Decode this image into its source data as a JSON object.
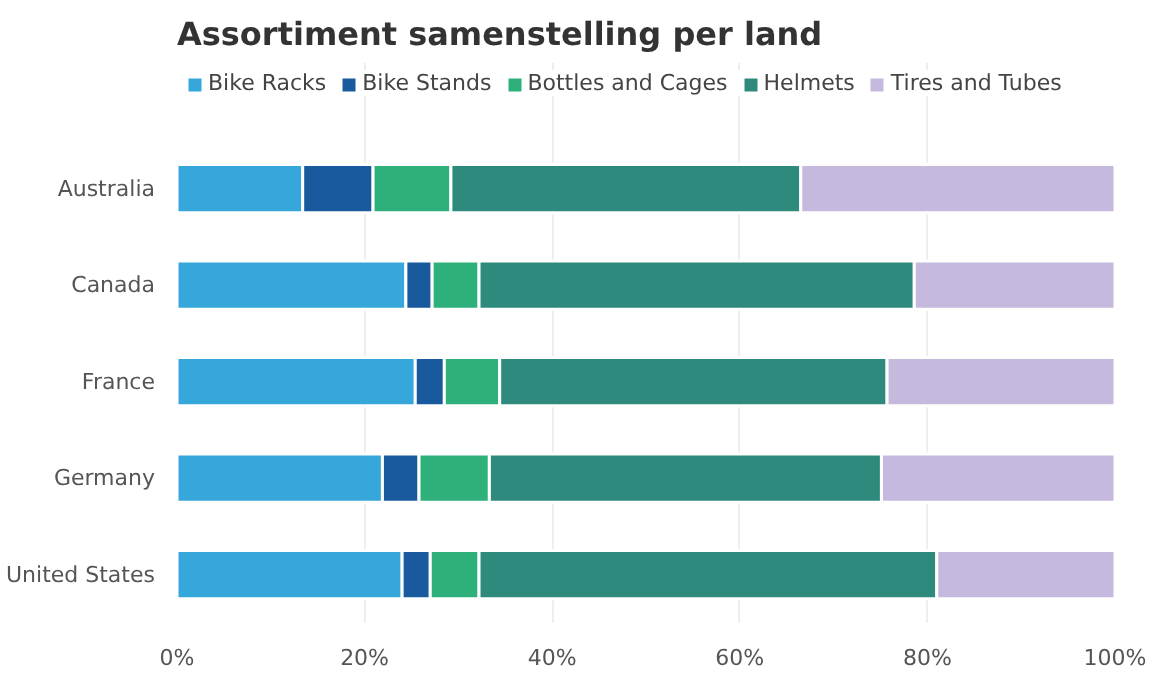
{
  "chart_data": {
    "type": "bar",
    "orientation": "horizontal",
    "stacked": true,
    "title": "Assortiment samenstelling per land",
    "categories": [
      "Australia",
      "Canada",
      "France",
      "Germany",
      "United States"
    ],
    "series": [
      {
        "name": "Bike Racks",
        "color": "#35a7db",
        "values": [
          13.4,
          24.4,
          25.4,
          21.9,
          24.0
        ]
      },
      {
        "name": "Bike Stands",
        "color": "#185a9d",
        "values": [
          7.5,
          2.8,
          3.1,
          3.9,
          3.0
        ]
      },
      {
        "name": "Bottles and Cages",
        "color": "#2eb07a",
        "values": [
          8.3,
          5.0,
          5.9,
          7.5,
          5.2
        ]
      },
      {
        "name": "Helmets",
        "color": "#2e8a7c",
        "values": [
          37.3,
          46.4,
          41.3,
          41.8,
          48.8
        ]
      },
      {
        "name": "Tires and Tubes",
        "color": "#c5b9de",
        "values": [
          33.5,
          21.4,
          24.3,
          24.9,
          19.0
        ]
      }
    ],
    "xlim": [
      0,
      100
    ],
    "xticks": [
      {
        "value": 0,
        "label": "0%"
      },
      {
        "value": 20,
        "label": "20%"
      },
      {
        "value": 40,
        "label": "40%"
      },
      {
        "value": 60,
        "label": "60%"
      },
      {
        "value": 80,
        "label": "80%"
      },
      {
        "value": 100,
        "label": "100%"
      }
    ],
    "grid": "x",
    "legend": "top left"
  }
}
